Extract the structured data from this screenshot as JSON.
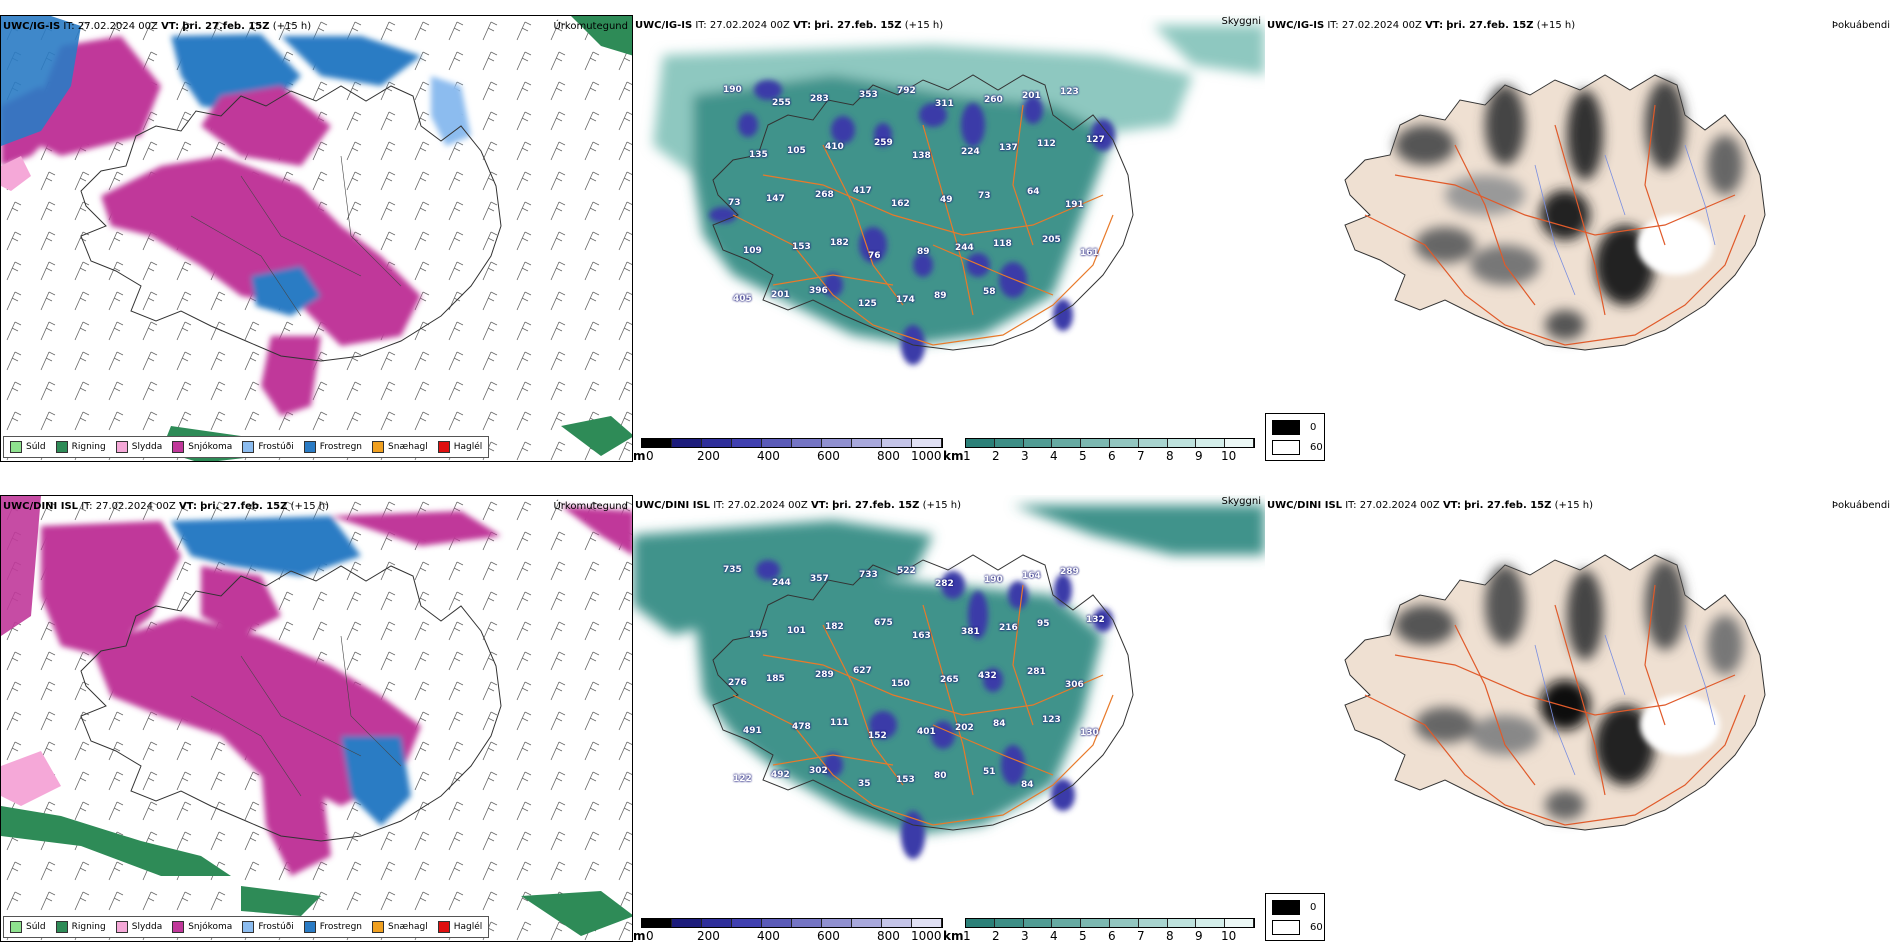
{
  "rows": [
    {
      "model": "UWC/IG-IS",
      "it_label": "IT:",
      "it_value": "27.02.2024 00Z",
      "vt_label": "VT:",
      "vt_value": "þri. 27.feb. 15Z",
      "lead": "(+15 h)"
    },
    {
      "model": "UWC/DINI ISL",
      "it_label": "IT:",
      "it_value": "27.02.2024 00Z",
      "vt_label": "VT:",
      "vt_value": "þri. 27.feb. 15Z",
      "lead": "(+15 h)"
    }
  ],
  "panels": {
    "precip_title": "Úrkomutegund",
    "vis_title": "Skyggni",
    "fog_title": "Þokuábendi"
  },
  "precip_legend": [
    {
      "label": "Súld",
      "color": "#8fe28f"
    },
    {
      "label": "Rigning",
      "color": "#2e8b57"
    },
    {
      "label": "Slydda",
      "color": "#f5a8d8"
    },
    {
      "label": "Snjókoma",
      "color": "#c0389a"
    },
    {
      "label": "Frostúði",
      "color": "#8cbcef"
    },
    {
      "label": "Frostregn",
      "color": "#2a7bc4"
    },
    {
      "label": "Snæhagl",
      "color": "#f0a020"
    },
    {
      "label": "Haglél",
      "color": "#e01010"
    }
  ],
  "cloudbase_bar": {
    "unit": "m",
    "ticks": [
      "0",
      "200",
      "400",
      "600",
      "800",
      "1000"
    ],
    "colors": [
      "#000000",
      "#1c1c7c",
      "#2e2e9a",
      "#4040b0",
      "#5a5ab8",
      "#7474c4",
      "#9090d0",
      "#a8a8dc",
      "#c4c4e8",
      "#e0e0f4"
    ]
  },
  "visibility_bar": {
    "unit": "km",
    "ticks": [
      "1",
      "2",
      "3",
      "4",
      "5",
      "6",
      "7",
      "8",
      "9",
      "10"
    ],
    "colors": [
      "#2b8078",
      "#3d8e86",
      "#519c94",
      "#66aaa2",
      "#7cb8b1",
      "#92c6c0",
      "#a8d4cf",
      "#bee2dd",
      "#d4eeea",
      "#ecf8f6"
    ]
  },
  "fog_mask": {
    "items": [
      {
        "label": "0",
        "color": "#000000"
      },
      {
        "label": "60",
        "color": "#ffffff"
      }
    ]
  },
  "peaks_top": [
    "190",
    "255",
    "283",
    "353",
    "792",
    "311",
    "260",
    "201",
    "123",
    "135",
    "105",
    "410",
    "259",
    "138",
    "224",
    "137",
    "112",
    "127",
    "73",
    "147",
    "268",
    "417",
    "162",
    "49",
    "73",
    "64",
    "191",
    "109",
    "153",
    "182",
    "76",
    "89",
    "244",
    "118",
    "205",
    "161",
    "405",
    "201",
    "396",
    "125",
    "174",
    "89",
    "58"
  ],
  "peaks_bottom": [
    "735",
    "244",
    "357",
    "733",
    "522",
    "282",
    "190",
    "164",
    "289",
    "195",
    "101",
    "182",
    "675",
    "163",
    "381",
    "216",
    "95",
    "132",
    "276",
    "185",
    "289",
    "627",
    "150",
    "265",
    "432",
    "281",
    "306",
    "491",
    "478",
    "111",
    "152",
    "401",
    "202",
    "84",
    "123",
    "130",
    "122",
    "492",
    "302",
    "35",
    "153",
    "80",
    "51",
    "84"
  ],
  "colors": {
    "snow": "#c0389a",
    "freezing_rain": "#2a7bc4",
    "freezing_drizzle": "#8cbcef",
    "rain": "#2e8b57",
    "sleet": "#f5a8d8",
    "vis_teal": "#3f938b",
    "land_fog": "#efe0d2",
    "roads": "#e87a2a"
  }
}
